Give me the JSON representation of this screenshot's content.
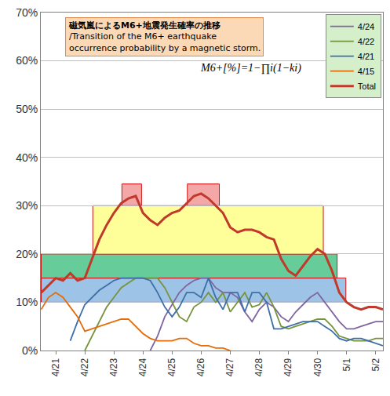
{
  "chart_data": {
    "type": "line",
    "title": "磁気嵐によるM6+地震発生確率の推移",
    "subtitle": [
      "/Transition of the M6+ earthquake",
      "occurrence probability by a magnetic storm."
    ],
    "annotations": [
      "M6+[%]=1−∏i(1−ki)"
    ],
    "categories": [
      null,
      null,
      "4/21",
      null,
      null,
      null,
      "4/22",
      null,
      null,
      null,
      "4/23",
      null,
      null,
      null,
      "4/24",
      null,
      null,
      null,
      "4/25",
      null,
      null,
      null,
      "4/26",
      null,
      null,
      null,
      "4/27",
      null,
      null,
      null,
      "4/28",
      null,
      null,
      null,
      "4/29",
      null,
      null,
      null,
      "4/30",
      null,
      null,
      null,
      "5/1",
      null,
      null,
      null,
      "5/2",
      null
    ],
    "series": [
      {
        "name": "4/24",
        "color": "#8064a2",
        "line_style": "solid",
        "values": [
          null,
          null,
          null,
          null,
          null,
          null,
          null,
          null,
          null,
          null,
          null,
          null,
          null,
          null,
          null,
          0,
          3,
          7,
          9.5,
          12,
          13.5,
          14.5,
          15,
          15,
          13,
          12,
          12,
          11,
          8,
          6,
          8.5,
          10,
          9,
          7,
          6,
          8,
          9.5,
          11,
          12,
          10,
          8,
          6,
          4.5,
          4.5,
          5,
          5.5,
          6,
          6
        ]
      },
      {
        "name": "4/22",
        "color": "#77933c",
        "line_style": "solid",
        "values": [
          null,
          null,
          null,
          null,
          null,
          null,
          0,
          3,
          6,
          9,
          11,
          13,
          14,
          15,
          15,
          15,
          15,
          13,
          10,
          7,
          6,
          9,
          10,
          12,
          10,
          12,
          8,
          10,
          12,
          9,
          9.5,
          12,
          9,
          5,
          4.5,
          5,
          5.5,
          6,
          6.5,
          6.5,
          5,
          3,
          2.5,
          2,
          2,
          2,
          2.5,
          2.5
        ]
      },
      {
        "name": "4/21",
        "color": "#3f6fa8",
        "line_style": "solid",
        "values": [
          null,
          null,
          null,
          null,
          2,
          6,
          9.5,
          11,
          12.5,
          13.5,
          14.5,
          15,
          15,
          15,
          15,
          14.5,
          12,
          9,
          7,
          9,
          12,
          12,
          11,
          15,
          11,
          8.5,
          12,
          12,
          8,
          12,
          12,
          10,
          4.5,
          4.5,
          5,
          5.5,
          6,
          6,
          6,
          5,
          4,
          2.5,
          2,
          2.5,
          2.5,
          2,
          1.5,
          1
        ]
      },
      {
        "name": "4/15",
        "color": "#e46c0a",
        "line_style": "solid",
        "values": [
          8.5,
          11,
          12,
          11,
          9,
          7,
          4,
          4.5,
          5,
          5.5,
          6,
          6.5,
          6.5,
          5,
          3.5,
          2.5,
          2,
          2,
          2,
          2.5,
          2.5,
          1.5,
          1,
          1,
          0.5,
          0.5,
          0,
          null,
          null,
          null,
          null,
          null,
          null,
          null,
          null,
          null,
          null,
          null,
          null,
          null,
          null,
          null,
          null,
          null,
          null,
          null,
          null,
          null
        ]
      },
      {
        "name": "Total",
        "color": "#c0392b",
        "line_style": "thick",
        "values": [
          12,
          13.5,
          15,
          14.5,
          16,
          14.5,
          15,
          19,
          23,
          26,
          28.5,
          30.5,
          31.5,
          32,
          28.5,
          27,
          26,
          27.5,
          28.5,
          29,
          30.5,
          32,
          32.5,
          31.5,
          30,
          28.5,
          25.5,
          24.5,
          25,
          25,
          24.5,
          23.5,
          23,
          19,
          16.5,
          15.5,
          17.5,
          19.5,
          21,
          20,
          16.5,
          12,
          10,
          9,
          8.5,
          9,
          9,
          8.5
        ]
      }
    ],
    "bands": [
      {
        "x0": 0,
        "x1": 41.9,
        "y0": 10,
        "y1": 15,
        "color": "#9dc3e6"
      },
      {
        "x0": 0,
        "x1": 40.7,
        "y0": 15,
        "y1": 20,
        "color": "#66cc99"
      },
      {
        "x0": 7.1,
        "x1": 38.8,
        "y0": 20,
        "y1": 30,
        "color": "#ffff99"
      },
      {
        "x0": 11.1,
        "x1": 13.8,
        "y0": 30,
        "y1": 34.5,
        "color": "#f4a7a7"
      },
      {
        "x0": 20.1,
        "x1": 24.5,
        "y0": 30,
        "y1": 34.5,
        "color": "#f4a7a7"
      }
    ],
    "ylim": [
      0,
      70
    ],
    "yticks": [
      {
        "value": 0,
        "label": "0%"
      },
      {
        "value": 10,
        "label": "10%"
      },
      {
        "value": 20,
        "label": "20%"
      },
      {
        "value": 30,
        "label": "30%"
      },
      {
        "value": 40,
        "label": "40%"
      },
      {
        "value": 50,
        "label": "50%"
      },
      {
        "value": 60,
        "label": "60%"
      },
      {
        "value": 70,
        "label": "70%"
      }
    ],
    "grid": true,
    "legend": "upper right"
  }
}
